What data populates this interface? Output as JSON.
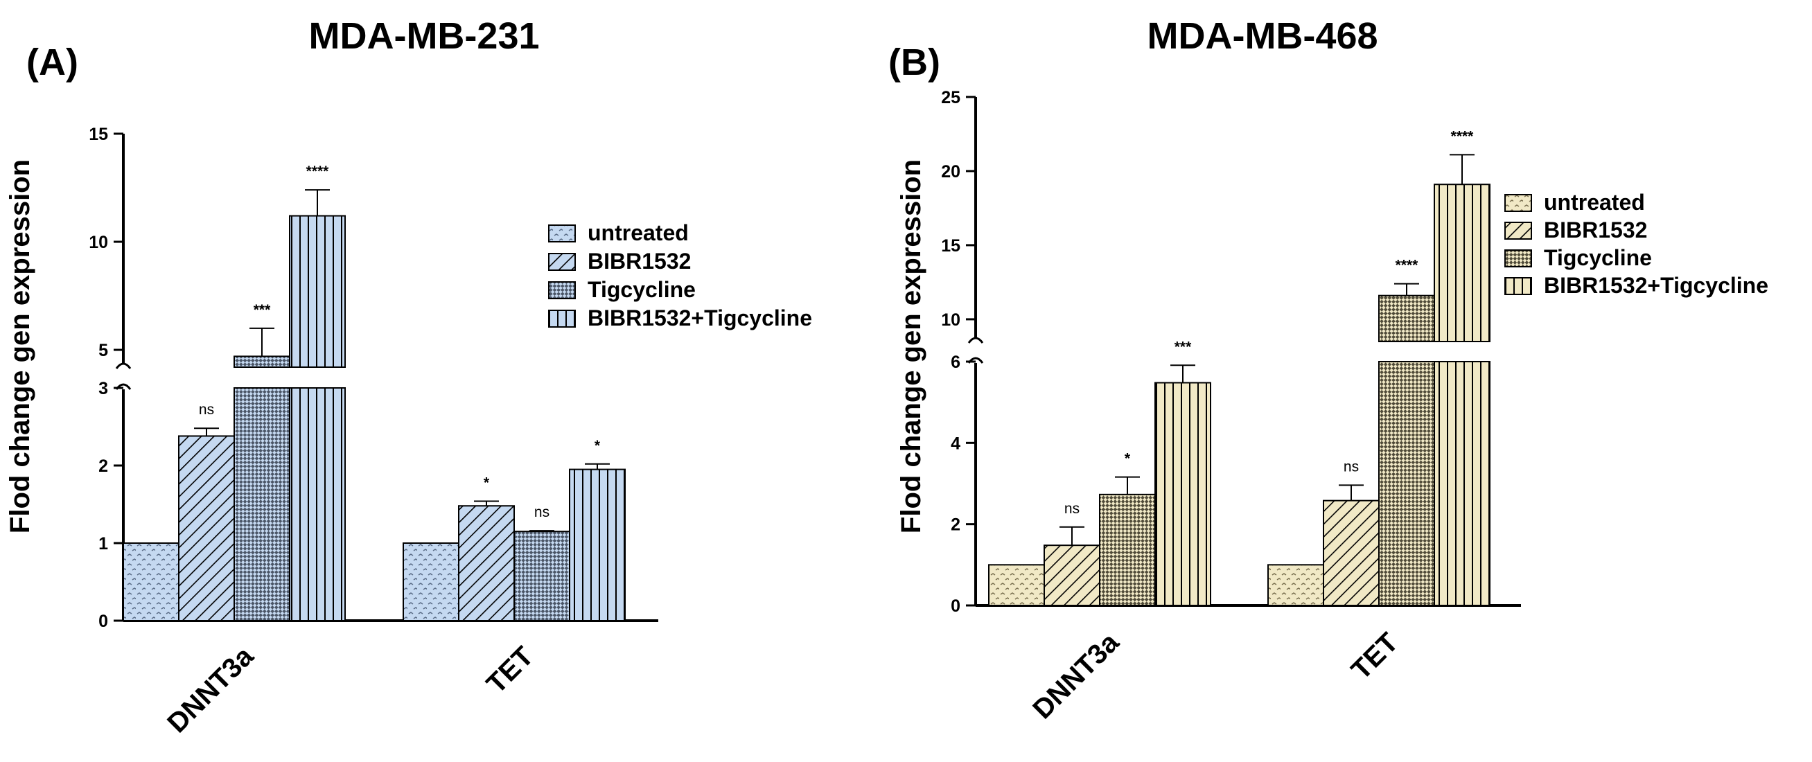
{
  "chart_data": [
    {
      "type": "bar",
      "panel": "(A)",
      "title": "MDA-MB-231",
      "ylabel": "Flod change gen expression",
      "xlabel": "",
      "categories": [
        "DNNT3a",
        "TET"
      ],
      "ylim": [
        0,
        15
      ],
      "axis_break": [
        3,
        4.2
      ],
      "yticks_lower": [
        "0",
        "1",
        "2",
        "3"
      ],
      "yticks_upper": [
        "5",
        "10",
        "15"
      ],
      "legend_position": "right",
      "series": [
        {
          "name": "untreated",
          "values": [
            1.0,
            1.0
          ],
          "errors": [
            0,
            0
          ],
          "significance": [
            "",
            ""
          ]
        },
        {
          "name": "BIBR1532",
          "values": [
            2.38,
            1.48
          ],
          "errors": [
            0.1,
            0.06
          ],
          "significance": [
            "ns",
            "*"
          ]
        },
        {
          "name": "Tigcycline",
          "values": [
            4.7,
            1.15
          ],
          "errors": [
            1.3,
            0.01
          ],
          "significance": [
            "***",
            "ns"
          ]
        },
        {
          "name": "BIBR1532+Tigcycline",
          "values": [
            11.2,
            1.95
          ],
          "errors": [
            1.2,
            0.07
          ],
          "significance": [
            "****",
            "*"
          ]
        }
      ]
    },
    {
      "type": "bar",
      "panel": "(B)",
      "title": "MDA-MB-468",
      "ylabel": "Flod change gen expression",
      "xlabel": "",
      "categories": [
        "DNNT3a",
        "TET"
      ],
      "ylim": [
        0,
        25
      ],
      "axis_break": [
        6,
        8.5
      ],
      "yticks_lower": [
        "0",
        "2",
        "4",
        "6"
      ],
      "yticks_upper": [
        "10",
        "15",
        "20",
        "25"
      ],
      "legend_position": "right",
      "series": [
        {
          "name": "untreated",
          "values": [
            1.0,
            1.0
          ],
          "errors": [
            0,
            0
          ],
          "significance": [
            "",
            ""
          ]
        },
        {
          "name": "BIBR1532",
          "values": [
            1.48,
            2.58
          ],
          "errors": [
            0.45,
            0.38
          ],
          "significance": [
            "ns",
            "ns"
          ]
        },
        {
          "name": "Tigcycline",
          "values": [
            2.73,
            11.6
          ],
          "errors": [
            0.43,
            0.8
          ],
          "significance": [
            "*",
            "****"
          ]
        },
        {
          "name": "BIBR1532+Tigcycline",
          "values": [
            5.48,
            19.1
          ],
          "errors": [
            0.43,
            2.0
          ],
          "significance": [
            "***",
            "****"
          ]
        }
      ]
    }
  ],
  "colors": {
    "panel_a_fill": "#c5d9f1",
    "panel_b_fill": "#f1e9c6",
    "axis": "#000000"
  }
}
